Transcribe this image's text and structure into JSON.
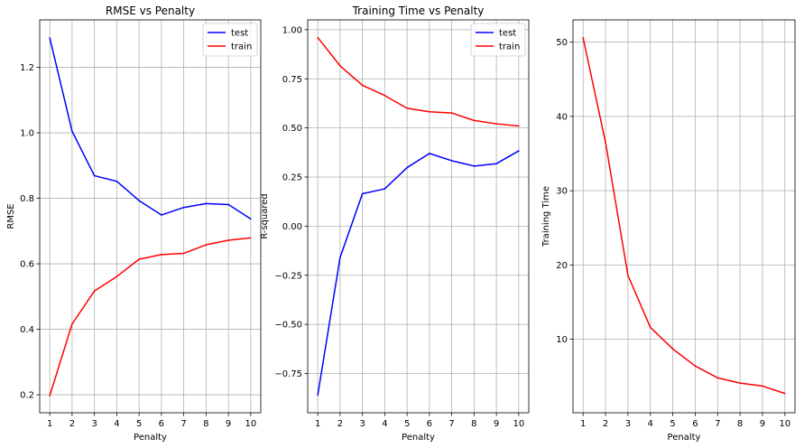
{
  "chart_data": [
    {
      "type": "line",
      "title": "RMSE vs Penalty",
      "xlabel": "Penalty",
      "ylabel": "RMSE",
      "x": [
        1,
        2,
        3,
        4,
        5,
        6,
        7,
        8,
        9,
        10
      ],
      "xticks": [
        "1",
        "2",
        "3",
        "4",
        "5",
        "6",
        "7",
        "8",
        "9",
        "10"
      ],
      "yticks": [
        0.2,
        0.4,
        0.6,
        0.8,
        1.0,
        1.2
      ],
      "ytick_labels": [
        "0.2",
        "0.4",
        "0.6",
        "0.8",
        "1.0",
        "1.2"
      ],
      "xlim": [
        0.55,
        10.45
      ],
      "ylim": [
        0.145,
        1.345
      ],
      "grid": true,
      "legend": "top-right",
      "series": [
        {
          "name": "test",
          "color": "#0000ff",
          "values": [
            1.29,
            1.005,
            0.869,
            0.852,
            0.793,
            0.749,
            0.772,
            0.784,
            0.781,
            0.737
          ]
        },
        {
          "name": "train",
          "color": "#ff0000",
          "values": [
            0.197,
            0.416,
            0.517,
            0.561,
            0.614,
            0.628,
            0.632,
            0.658,
            0.672,
            0.679
          ]
        }
      ]
    },
    {
      "type": "line",
      "title": "Training Time vs Penalty",
      "xlabel": "Penalty",
      "ylabel": "R-squared",
      "x": [
        1,
        2,
        3,
        4,
        5,
        6,
        7,
        8,
        9,
        10
      ],
      "xticks": [
        "1",
        "2",
        "3",
        "4",
        "5",
        "6",
        "7",
        "8",
        "9",
        "10"
      ],
      "yticks": [
        -0.75,
        -0.5,
        -0.25,
        0.0,
        0.25,
        0.5,
        0.75,
        1.0
      ],
      "ytick_labels": [
        "−0.75",
        "−0.50",
        "−0.25",
        "0.00",
        "0.25",
        "0.50",
        "0.75",
        "1.00"
      ],
      "xlim": [
        0.55,
        10.45
      ],
      "ylim": [
        -0.95,
        1.05
      ],
      "grid": true,
      "legend": "top-right",
      "series": [
        {
          "name": "test",
          "color": "#0000ff",
          "values": [
            -0.86,
            -0.16,
            0.165,
            0.19,
            0.298,
            0.37,
            0.333,
            0.306,
            0.318,
            0.383
          ]
        },
        {
          "name": "train",
          "color": "#ff0000",
          "values": [
            0.96,
            0.816,
            0.717,
            0.665,
            0.6,
            0.582,
            0.576,
            0.538,
            0.521,
            0.51
          ]
        }
      ]
    },
    {
      "type": "line",
      "title": "",
      "xlabel": "Penalty",
      "ylabel": "Training Time",
      "x": [
        1,
        2,
        3,
        4,
        5,
        6,
        7,
        8,
        9,
        10
      ],
      "xticks": [
        "1",
        "2",
        "3",
        "4",
        "5",
        "6",
        "7",
        "8",
        "9",
        "10"
      ],
      "yticks": [
        10,
        20,
        30,
        40,
        50
      ],
      "ytick_labels": [
        "10",
        "20",
        "30",
        "40",
        "50"
      ],
      "xlim": [
        0.55,
        10.45
      ],
      "ylim": [
        0.1,
        53.0
      ],
      "grid": true,
      "legend": "none",
      "series": [
        {
          "color": "#ff0000",
          "values": [
            50.6,
            36.5,
            18.6,
            11.6,
            8.7,
            6.4,
            4.8,
            4.1,
            3.7,
            2.7
          ]
        }
      ]
    }
  ]
}
